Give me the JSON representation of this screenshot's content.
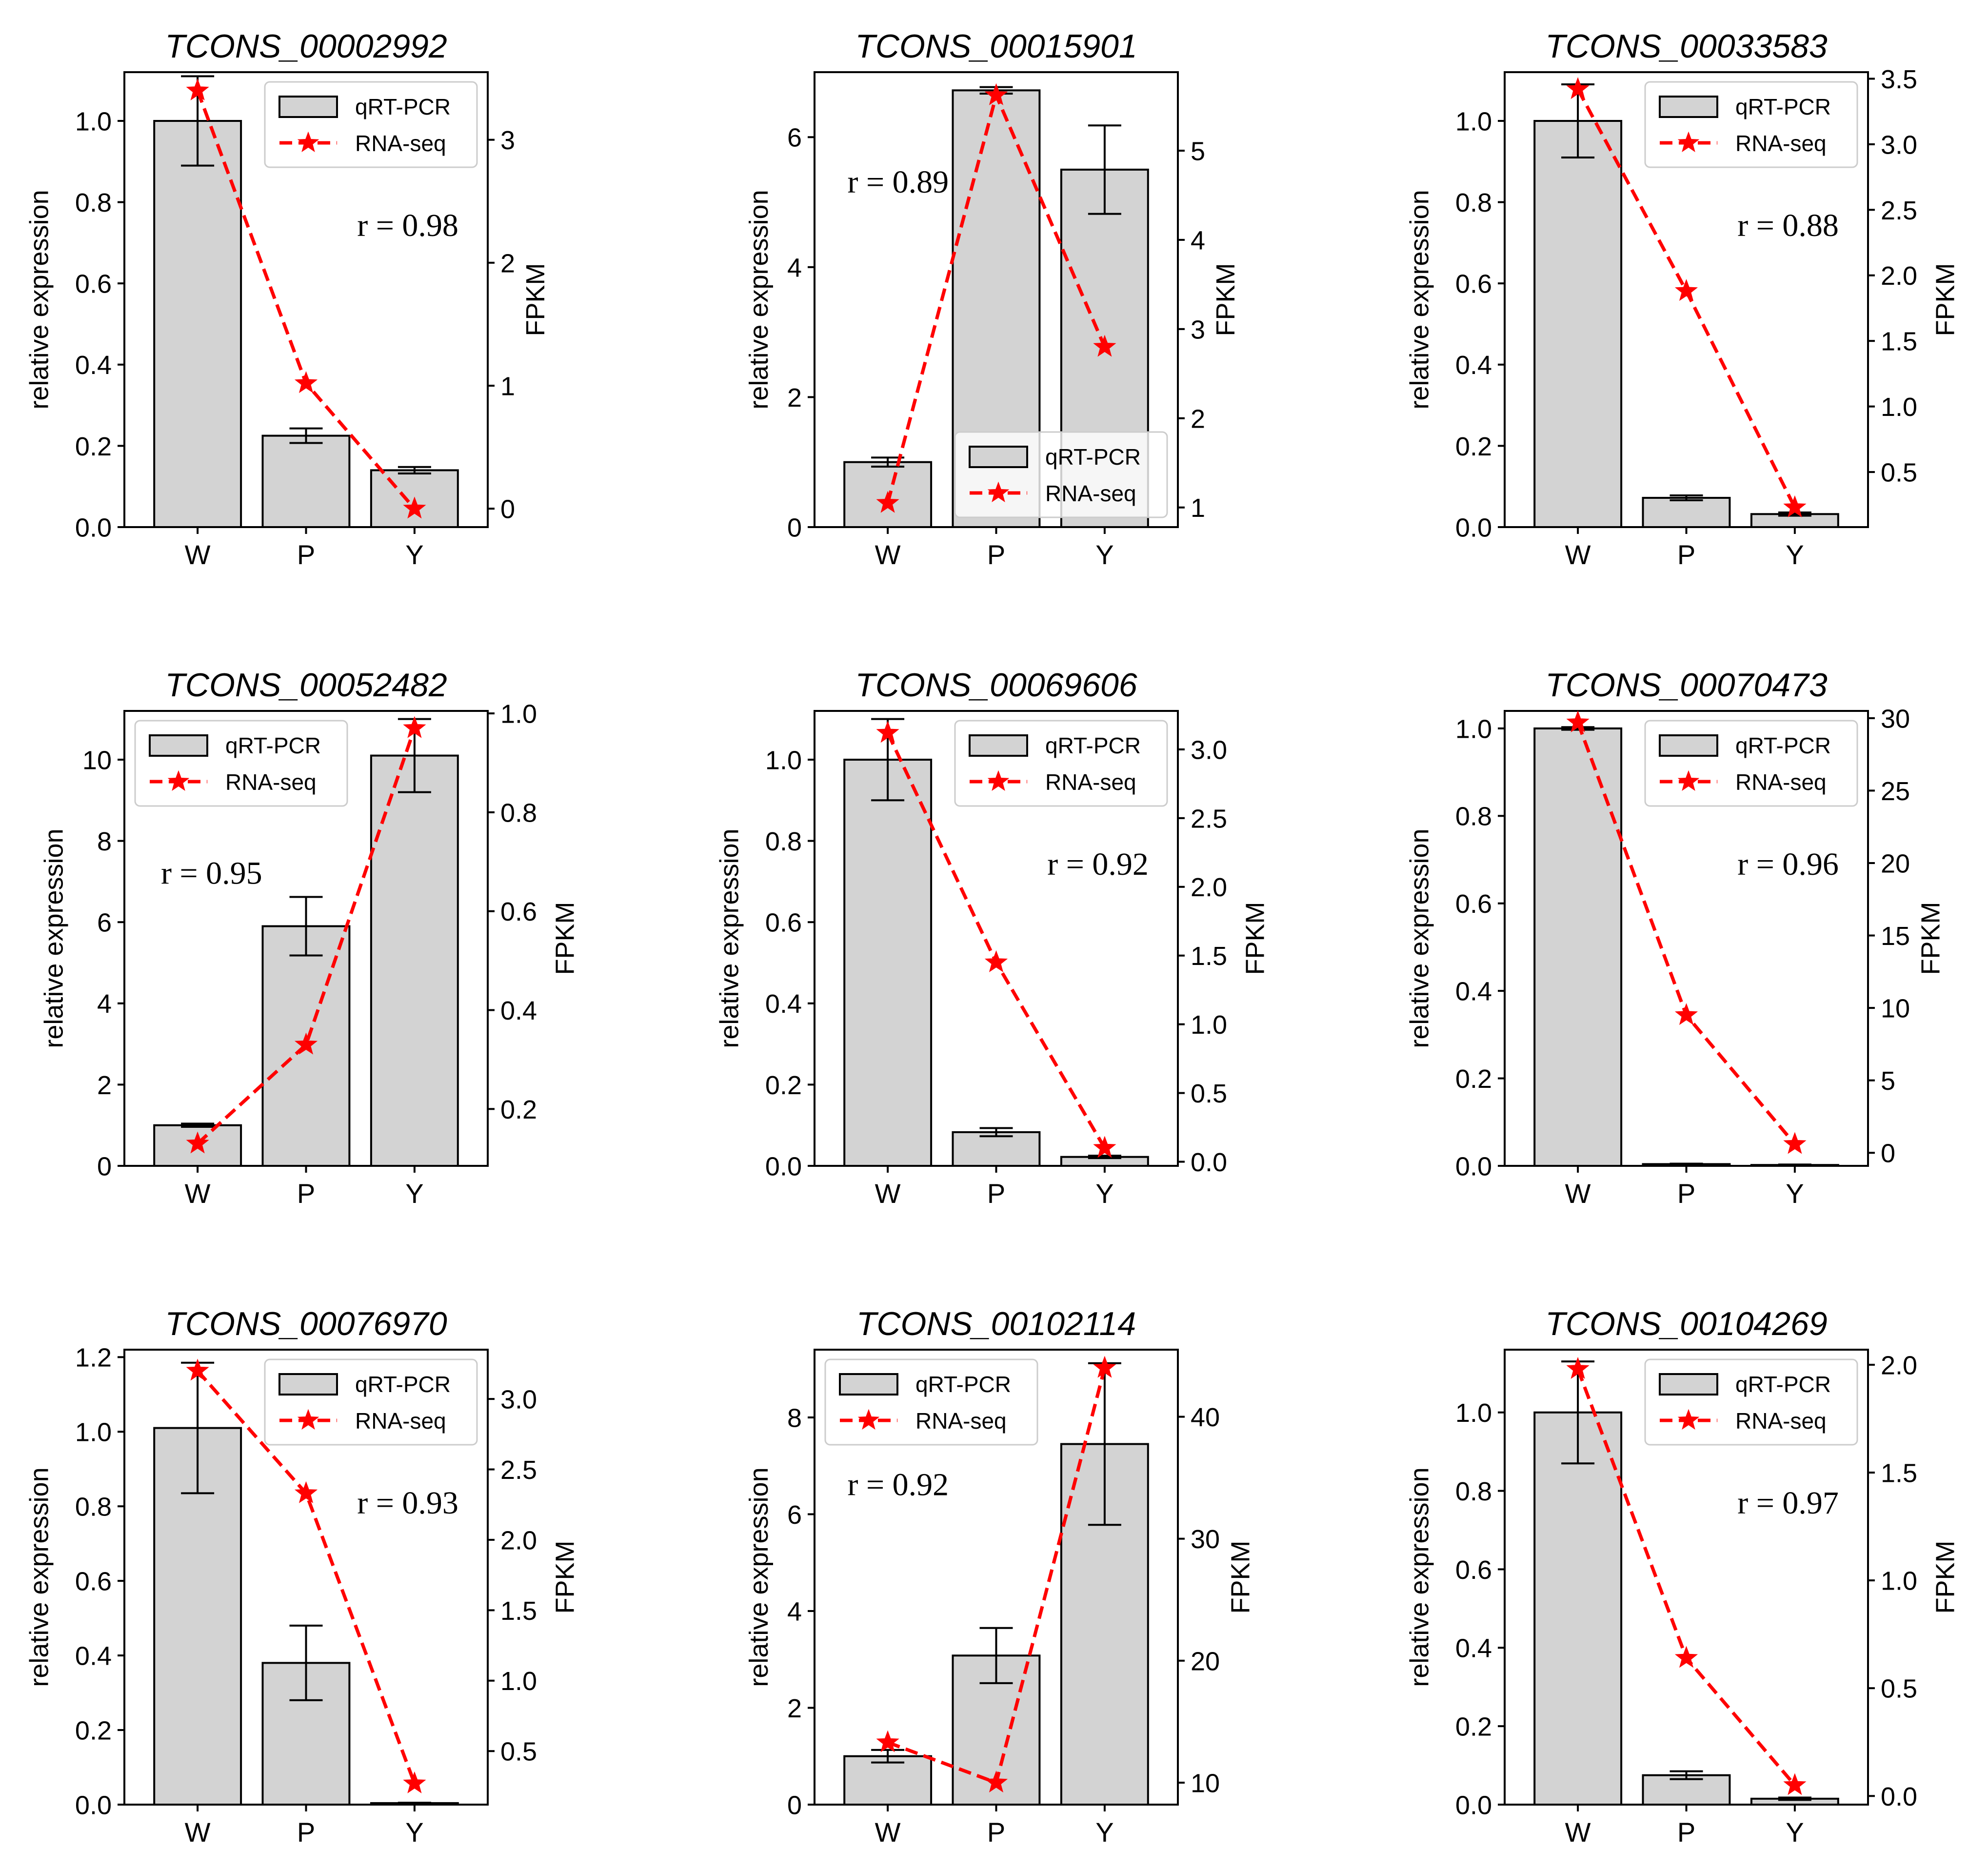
{
  "figure": {
    "categories": [
      "W",
      "P",
      "Y"
    ],
    "left_axis_label": "relative expression",
    "right_axis_label": "FPKM",
    "legend_labels": {
      "bar": "qRT-PCR",
      "line": "RNA-seq"
    },
    "colors": {
      "bar_fill": "#d3d3d3",
      "bar_edge": "#000000",
      "line": "#ff0000"
    }
  },
  "chart_data": [
    {
      "type": "bar",
      "title": "TCONS_00002992",
      "categories": [
        "W",
        "P",
        "Y"
      ],
      "ylabel": "relative expression",
      "y2label": "FPKM",
      "ylim": [
        0,
        1.12
      ],
      "yticks": [
        0.0,
        0.2,
        0.4,
        0.6,
        0.8,
        1.0
      ],
      "ytick_labels": [
        "0.0",
        "0.2",
        "0.4",
        "0.6",
        "0.8",
        "1.0"
      ],
      "y2lim": [
        -0.15,
        3.55
      ],
      "y2ticks": [
        0,
        1,
        2,
        3
      ],
      "y2tick_labels": [
        "0",
        "1",
        "2",
        "3"
      ],
      "series": [
        {
          "name": "qRT-PCR",
          "kind": "bar",
          "axis": "left",
          "values": [
            1.0,
            0.225,
            0.14
          ],
          "errors": [
            0.11,
            0.018,
            0.008
          ]
        },
        {
          "name": "RNA-seq",
          "kind": "line",
          "axis": "right",
          "values": [
            3.4,
            1.02,
            0.0
          ]
        }
      ],
      "annotation": "r = 0.98",
      "annotation_pos": "upper-right",
      "legend": "top-right"
    },
    {
      "type": "bar",
      "title": "TCONS_00015901",
      "categories": [
        "W",
        "P",
        "Y"
      ],
      "ylabel": "relative expression",
      "y2label": "FPKM",
      "ylim": [
        0,
        7.0
      ],
      "yticks": [
        0,
        2,
        4,
        6
      ],
      "ytick_labels": [
        "0",
        "2",
        "4",
        "6"
      ],
      "y2lim": [
        0.78,
        5.88
      ],
      "y2ticks": [
        1,
        2,
        3,
        4,
        5
      ],
      "y2tick_labels": [
        "1",
        "2",
        "3",
        "4",
        "5"
      ],
      "series": [
        {
          "name": "qRT-PCR",
          "kind": "bar",
          "axis": "left",
          "values": [
            1.0,
            6.72,
            5.5
          ],
          "errors": [
            0.07,
            0.05,
            0.68
          ]
        },
        {
          "name": "RNA-seq",
          "kind": "line",
          "axis": "right",
          "values": [
            1.05,
            5.62,
            2.8
          ]
        }
      ],
      "annotation": "r = 0.89",
      "annotation_pos": "upper-left",
      "legend": "bottom-right"
    },
    {
      "type": "bar",
      "title": "TCONS_00033583",
      "categories": [
        "W",
        "P",
        "Y"
      ],
      "ylabel": "relative expression",
      "y2label": "FPKM",
      "ylim": [
        0,
        1.12
      ],
      "yticks": [
        0.0,
        0.2,
        0.4,
        0.6,
        0.8,
        1.0
      ],
      "ytick_labels": [
        "0.0",
        "0.2",
        "0.4",
        "0.6",
        "0.8",
        "1.0"
      ],
      "y2lim": [
        0.08,
        3.55
      ],
      "y2ticks": [
        0.5,
        1.0,
        1.5,
        2.0,
        2.5,
        3.0,
        3.5
      ],
      "y2tick_labels": [
        "0.5",
        "1.0",
        "1.5",
        "2.0",
        "2.5",
        "3.0",
        "3.5"
      ],
      "series": [
        {
          "name": "qRT-PCR",
          "kind": "bar",
          "axis": "left",
          "values": [
            1.0,
            0.072,
            0.032
          ],
          "errors": [
            0.09,
            0.006,
            0.004
          ]
        },
        {
          "name": "RNA-seq",
          "kind": "line",
          "axis": "right",
          "values": [
            3.42,
            1.88,
            0.23
          ]
        }
      ],
      "annotation": "r = 0.88",
      "annotation_pos": "upper-right",
      "legend": "top-right"
    },
    {
      "type": "bar",
      "title": "TCONS_00052482",
      "categories": [
        "W",
        "P",
        "Y"
      ],
      "ylabel": "relative expression",
      "y2label": "FPKM",
      "ylim": [
        0,
        11.2
      ],
      "yticks": [
        0,
        2,
        4,
        6,
        8,
        10
      ],
      "ytick_labels": [
        "0",
        "2",
        "4",
        "6",
        "8",
        "10"
      ],
      "y2lim": [
        0.085,
        1.005
      ],
      "y2ticks": [
        0.2,
        0.4,
        0.6,
        0.8,
        1.0
      ],
      "y2tick_labels": [
        "0.2",
        "0.4",
        "0.6",
        "0.8",
        "1.0"
      ],
      "series": [
        {
          "name": "qRT-PCR",
          "kind": "bar",
          "axis": "left",
          "values": [
            1.0,
            5.9,
            10.1
          ],
          "errors": [
            0.04,
            0.72,
            0.9
          ]
        },
        {
          "name": "RNA-seq",
          "kind": "line",
          "axis": "right",
          "values": [
            0.13,
            0.33,
            0.97
          ]
        }
      ],
      "annotation": "r = 0.95",
      "annotation_pos": "middle-left",
      "legend": "top-left"
    },
    {
      "type": "bar",
      "title": "TCONS_00069606",
      "categories": [
        "W",
        "P",
        "Y"
      ],
      "ylabel": "relative expression",
      "y2label": "FPKM",
      "ylim": [
        0,
        1.12
      ],
      "yticks": [
        0.0,
        0.2,
        0.4,
        0.6,
        0.8,
        1.0
      ],
      "ytick_labels": [
        "0.0",
        "0.2",
        "0.4",
        "0.6",
        "0.8",
        "1.0"
      ],
      "y2lim": [
        -0.03,
        3.28
      ],
      "y2ticks": [
        0.0,
        0.5,
        1.0,
        1.5,
        2.0,
        2.5,
        3.0
      ],
      "y2tick_labels": [
        "0.0",
        "0.5",
        "1.0",
        "1.5",
        "2.0",
        "2.5",
        "3.0"
      ],
      "series": [
        {
          "name": "qRT-PCR",
          "kind": "bar",
          "axis": "left",
          "values": [
            1.0,
            0.083,
            0.022
          ],
          "errors": [
            0.1,
            0.01,
            0.003
          ]
        },
        {
          "name": "RNA-seq",
          "kind": "line",
          "axis": "right",
          "values": [
            3.12,
            1.45,
            0.1
          ]
        }
      ],
      "annotation": "r = 0.92",
      "annotation_pos": "upper-right",
      "legend": "top-right"
    },
    {
      "type": "bar",
      "title": "TCONS_00070473",
      "categories": [
        "W",
        "P",
        "Y"
      ],
      "ylabel": "relative expression",
      "y2label": "FPKM",
      "ylim": [
        0,
        1.04
      ],
      "yticks": [
        0.0,
        0.2,
        0.4,
        0.6,
        0.8,
        1.0
      ],
      "ytick_labels": [
        "0.0",
        "0.2",
        "0.4",
        "0.6",
        "0.8",
        "1.0"
      ],
      "y2lim": [
        -0.9,
        30.5
      ],
      "y2ticks": [
        0,
        5,
        10,
        15,
        20,
        25,
        30
      ],
      "y2tick_labels": [
        "0",
        "5",
        "10",
        "15",
        "20",
        "25",
        "30"
      ],
      "series": [
        {
          "name": "qRT-PCR",
          "kind": "bar",
          "axis": "left",
          "values": [
            1.0,
            0.004,
            0.002
          ],
          "errors": [
            0.003,
            0.001,
            0.001
          ]
        },
        {
          "name": "RNA-seq",
          "kind": "line",
          "axis": "right",
          "values": [
            29.7,
            9.5,
            0.6
          ]
        }
      ],
      "annotation": "r = 0.96",
      "annotation_pos": "upper-right",
      "legend": "top-right"
    },
    {
      "type": "bar",
      "title": "TCONS_00076970",
      "categories": [
        "W",
        "P",
        "Y"
      ],
      "ylabel": "relative expression",
      "y2label": "FPKM",
      "ylim": [
        0,
        1.22
      ],
      "yticks": [
        0.0,
        0.2,
        0.4,
        0.6,
        0.8,
        1.0,
        1.2
      ],
      "ytick_labels": [
        "0.0",
        "0.2",
        "0.4",
        "0.6",
        "0.8",
        "1.0",
        "1.2"
      ],
      "y2lim": [
        0.12,
        3.35
      ],
      "y2ticks": [
        0.5,
        1.0,
        1.5,
        2.0,
        2.5,
        3.0
      ],
      "y2tick_labels": [
        "0.5",
        "1.0",
        "1.5",
        "2.0",
        "2.5",
        "3.0"
      ],
      "series": [
        {
          "name": "qRT-PCR",
          "kind": "bar",
          "axis": "left",
          "values": [
            1.01,
            0.38,
            0.004
          ],
          "errors": [
            0.175,
            0.1,
            0.001
          ]
        },
        {
          "name": "RNA-seq",
          "kind": "line",
          "axis": "right",
          "values": [
            3.2,
            2.33,
            0.27
          ]
        }
      ],
      "annotation": "r = 0.93",
      "annotation_pos": "upper-right",
      "legend": "top-right"
    },
    {
      "type": "bar",
      "title": "TCONS_00102114",
      "categories": [
        "W",
        "P",
        "Y"
      ],
      "ylabel": "relative expression",
      "y2label": "FPKM",
      "ylim": [
        0,
        9.4
      ],
      "yticks": [
        0,
        2,
        4,
        6,
        8
      ],
      "ytick_labels": [
        "0",
        "2",
        "4",
        "6",
        "8"
      ],
      "y2lim": [
        8.2,
        45.5
      ],
      "y2ticks": [
        10,
        20,
        30,
        40
      ],
      "y2tick_labels": [
        "10",
        "20",
        "30",
        "40"
      ],
      "series": [
        {
          "name": "qRT-PCR",
          "kind": "bar",
          "axis": "left",
          "values": [
            1.0,
            3.08,
            7.45
          ],
          "errors": [
            0.13,
            0.57,
            1.67
          ]
        },
        {
          "name": "RNA-seq",
          "kind": "line",
          "axis": "right",
          "values": [
            13.3,
            10.0,
            44.0
          ]
        }
      ],
      "annotation": "r = 0.92",
      "annotation_pos": "upper-left",
      "legend": "top-left"
    },
    {
      "type": "bar",
      "title": "TCONS_00104269",
      "categories": [
        "W",
        "P",
        "Y"
      ],
      "ylabel": "relative expression",
      "y2label": "FPKM",
      "ylim": [
        0,
        1.16
      ],
      "yticks": [
        0.0,
        0.2,
        0.4,
        0.6,
        0.8,
        1.0
      ],
      "ytick_labels": [
        "0.0",
        "0.2",
        "0.4",
        "0.6",
        "0.8",
        "1.0"
      ],
      "y2lim": [
        -0.04,
        2.07
      ],
      "y2ticks": [
        0.0,
        0.5,
        1.0,
        1.5,
        2.0
      ],
      "y2tick_labels": [
        "0.0",
        "0.5",
        "1.0",
        "1.5",
        "2.0"
      ],
      "series": [
        {
          "name": "qRT-PCR",
          "kind": "bar",
          "axis": "left",
          "values": [
            1.0,
            0.075,
            0.015
          ],
          "errors": [
            0.13,
            0.01,
            0.003
          ]
        },
        {
          "name": "RNA-seq",
          "kind": "line",
          "axis": "right",
          "values": [
            1.98,
            0.64,
            0.05
          ]
        }
      ],
      "annotation": "r = 0.97",
      "annotation_pos": "upper-right",
      "legend": "top-right"
    }
  ]
}
